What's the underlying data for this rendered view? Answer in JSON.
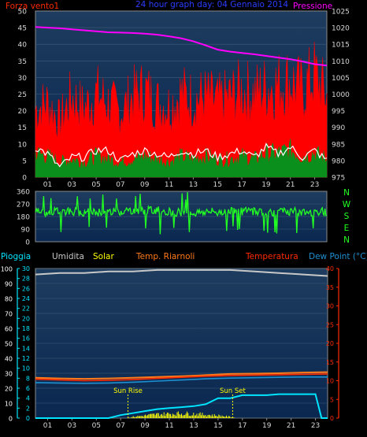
{
  "colors": {
    "background": "#000000",
    "plot_top": "#1e3c5e",
    "plot_bottom": "#0a2850",
    "border": "#8a8a8a",
    "wind_gust": "#ff0000",
    "wind_avg": "#0b8f1c",
    "wind_white": "#ffffff",
    "pressure": "#ff00ff",
    "direction": "#22ff22",
    "nwsen": "#22ff22",
    "humidity": "#c8c8c8",
    "solar": "#ffff00",
    "temp_in": "#ff7a1a",
    "temperature": "#ff2a00",
    "dew_point": "#1e8fd0",
    "rain": "#00e5ff",
    "rain_label": "#00e5ff",
    "left_axis_text": "#d8d8d8"
  },
  "header": {
    "wind_label": "Forza vento1",
    "title": "24 hour graph day: 04 Gennaio 2014",
    "pressure_label": "Pressione"
  },
  "compass": [
    "N",
    "W",
    "S",
    "E",
    "N"
  ],
  "lower_legend": {
    "rain": "Pioggia",
    "humidity": "Umidita",
    "solar": "Solar",
    "temp_in": "Temp. Riarnoli",
    "temperature": "Temperatura",
    "dew_point": "Dew Point (°C)"
  },
  "annotations": {
    "sun_rise": "Sun Rise",
    "sun_set": "Sun Set"
  },
  "chart_data": [
    {
      "type": "area",
      "x_ticks": [
        "01",
        "03",
        "05",
        "07",
        "09",
        "11",
        "13",
        "15",
        "17",
        "19",
        "21",
        "23"
      ],
      "xlim": [
        0,
        24
      ],
      "ylabel_left": "Forza vento1",
      "ylabel_right": "Pressione",
      "left_ticks": [
        0,
        5,
        10,
        15,
        20,
        25,
        30,
        35,
        40,
        45,
        50
      ],
      "right_ticks": [
        975,
        980,
        985,
        990,
        995,
        1000,
        1005,
        1010,
        1015,
        1020,
        1025
      ],
      "ylim_left": [
        0,
        50
      ],
      "ylim_right": [
        975,
        1025
      ],
      "series": [
        {
          "name": "gust",
          "x": [
            0,
            1,
            2,
            3,
            4,
            5,
            6,
            7,
            8,
            9,
            10,
            11,
            12,
            13,
            14,
            15,
            16,
            17,
            18,
            19,
            20,
            21,
            22,
            23,
            24
          ],
          "values": [
            22,
            24,
            18,
            26,
            22,
            27,
            24,
            21,
            26,
            28,
            24,
            23,
            27,
            25,
            26,
            24,
            26,
            28,
            27,
            29,
            30,
            31,
            28,
            33,
            26
          ]
        },
        {
          "name": "",
          "x": [
            0,
            1,
            2,
            3,
            4,
            5,
            6,
            7,
            8,
            9,
            10,
            11,
            12,
            13,
            14,
            15,
            16,
            17,
            18,
            19,
            20,
            21,
            22,
            23,
            24
          ],
          "values": [
            8,
            7,
            5,
            6,
            5,
            7,
            6,
            5,
            6,
            7,
            6,
            5,
            7,
            6,
            7,
            6,
            6,
            7,
            6,
            8,
            8,
            9,
            7,
            8,
            6
          ]
        },
        {
          "name": "",
          "x": [
            0,
            1,
            2,
            3,
            4,
            5,
            6,
            7,
            8,
            9,
            10,
            11,
            12,
            13,
            14,
            15,
            16,
            17,
            18,
            19,
            20,
            21,
            22,
            23,
            24
          ],
          "values": [
            9,
            7,
            3,
            6,
            6,
            8,
            8,
            5,
            7,
            8,
            7,
            6,
            8,
            7,
            8,
            6,
            7,
            8,
            6,
            9,
            7,
            9,
            6,
            8,
            5
          ]
        },
        {
          "name": "Pressione",
          "x": [
            0,
            1,
            2,
            3,
            4,
            5,
            6,
            7,
            8,
            9,
            10,
            11,
            12,
            13,
            14,
            15,
            16,
            17,
            18,
            19,
            20,
            21,
            22,
            23,
            24
          ],
          "values": [
            1020.2,
            1020.0,
            1019.8,
            1019.5,
            1019.2,
            1018.9,
            1018.6,
            1018.5,
            1018.4,
            1018.2,
            1017.9,
            1017.4,
            1016.8,
            1015.9,
            1014.7,
            1013.4,
            1012.8,
            1012.4,
            1012.0,
            1011.5,
            1011.0,
            1010.5,
            1009.8,
            1009.0,
            1008.6
          ]
        }
      ]
    },
    {
      "type": "line",
      "x_ticks": [
        "01",
        "03",
        "05",
        "07",
        "09",
        "11",
        "13",
        "15",
        "17",
        "19",
        "21",
        "23"
      ],
      "xlim": [
        0,
        24
      ],
      "left_ticks": [
        0,
        90,
        180,
        270,
        360
      ],
      "ylim": [
        0,
        360
      ],
      "series": [
        {
          "name": "",
          "x": [
            0,
            1,
            2,
            3,
            4,
            5,
            6,
            7,
            8,
            9,
            10,
            11,
            12,
            13,
            14,
            15,
            16,
            17,
            18,
            19,
            20,
            21,
            22,
            23,
            24
          ],
          "values": [
            215,
            205,
            220,
            218,
            212,
            210,
            215,
            218,
            225,
            220,
            228,
            215,
            210,
            205,
            215,
            210,
            225,
            215,
            220,
            215,
            210,
            220,
            205,
            215,
            215
          ]
        }
      ]
    },
    {
      "type": "line",
      "x_ticks": [
        "01",
        "03",
        "05",
        "07",
        "09",
        "11",
        "13",
        "15",
        "17",
        "19",
        "21",
        "23"
      ],
      "xlim": [
        0,
        24
      ],
      "left_ticks": [
        0,
        2,
        4,
        6,
        8,
        10,
        12,
        14,
        16,
        18,
        20,
        22,
        24,
        26,
        28,
        30
      ],
      "left2_ticks": [
        0,
        10,
        20,
        30,
        40,
        50,
        60,
        70,
        80,
        90,
        100
      ],
      "right_ticks": [
        0,
        5,
        10,
        15,
        20,
        25,
        30,
        35,
        40
      ],
      "ylim_left": [
        0,
        30
      ],
      "ylim_left2": [
        0,
        100
      ],
      "ylim_right": [
        0,
        40
      ],
      "series": [
        {
          "name": "Umidita",
          "x": [
            0,
            2,
            4,
            6,
            8,
            10,
            12,
            14,
            16,
            18,
            20,
            22,
            24
          ],
          "values": [
            96,
            97,
            97,
            98,
            98,
            99,
            99,
            99,
            99,
            98,
            97,
            96,
            95
          ]
        },
        {
          "name": "Temp. Riarnoli",
          "x": [
            0,
            2,
            4,
            6,
            8,
            10,
            12,
            14,
            16,
            18,
            20,
            22,
            24
          ],
          "values": [
            10.8,
            10.6,
            10.5,
            10.6,
            10.8,
            11.0,
            11.2,
            11.5,
            11.8,
            11.9,
            12.0,
            12.2,
            12.3
          ]
        },
        {
          "name": "Temperatura",
          "x": [
            0,
            2,
            4,
            6,
            8,
            10,
            12,
            14,
            16,
            18,
            20,
            22,
            24
          ],
          "values": [
            10.4,
            10.2,
            10.0,
            10.1,
            10.3,
            10.6,
            10.9,
            11.2,
            11.4,
            11.5,
            11.6,
            11.7,
            11.8
          ]
        },
        {
          "name": "Dew Point (°C)",
          "x": [
            0,
            2,
            4,
            6,
            8,
            10,
            12,
            14,
            16,
            18,
            20,
            22,
            24
          ],
          "values": [
            9.5,
            9.4,
            9.3,
            9.4,
            9.6,
            9.9,
            10.2,
            10.5,
            10.7,
            10.8,
            10.9,
            11.0,
            11.0
          ]
        },
        {
          "name": "Pioggia",
          "x": [
            0,
            1,
            2,
            3,
            4,
            5,
            6,
            7,
            8,
            9,
            10,
            11,
            12,
            13,
            14,
            15,
            16,
            17,
            18,
            19,
            20,
            21,
            22,
            23,
            23.5,
            24
          ],
          "values": [
            0,
            0,
            0,
            0,
            0,
            0,
            0,
            0.6,
            1.0,
            1.4,
            1.8,
            2.0,
            2.2,
            2.4,
            2.8,
            4.0,
            4.0,
            4.6,
            4.6,
            4.6,
            4.8,
            4.8,
            4.8,
            4.8,
            0,
            0
          ]
        },
        {
          "name": "Solar",
          "x": [
            0,
            7.5,
            8,
            9,
            10,
            11,
            12,
            13,
            14,
            15,
            16,
            16.5,
            24
          ],
          "values": [
            0,
            0,
            0.3,
            0.6,
            0.9,
            1.0,
            1.1,
            1.0,
            0.8,
            0.6,
            0.3,
            0,
            0
          ]
        }
      ],
      "sun_rise_x": 7.6,
      "sun_set_x": 16.2
    }
  ]
}
